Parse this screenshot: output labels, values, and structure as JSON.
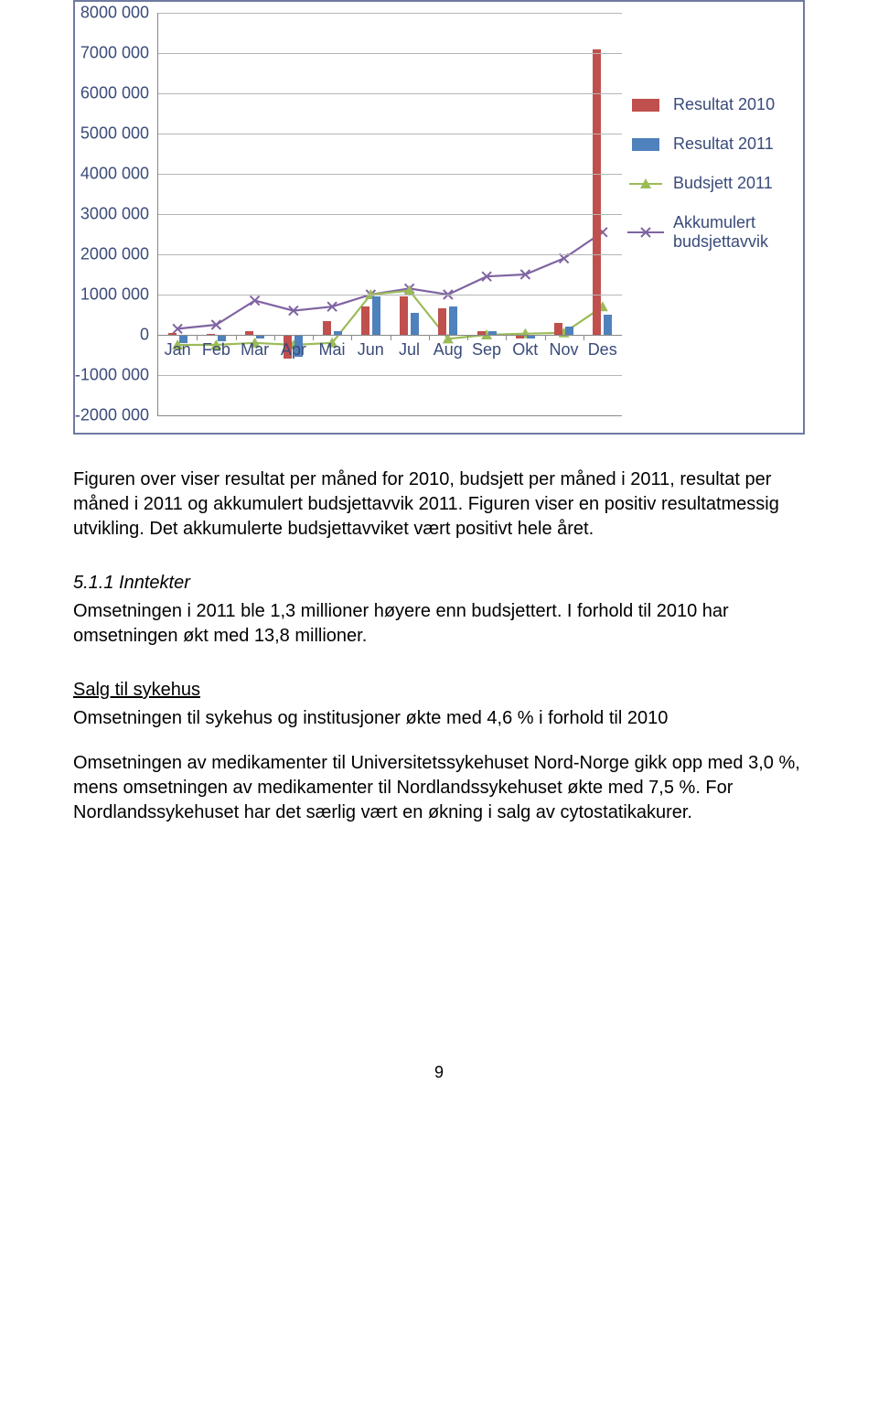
{
  "chart": {
    "type": "grouped-bar+line",
    "months": [
      "Jan",
      "Feb",
      "Mar",
      "Apr",
      "Mai",
      "Jun",
      "Jul",
      "Aug",
      "Sep",
      "Okt",
      "Nov",
      "Des"
    ],
    "ymin": -2000000,
    "ymax": 8000000,
    "ystep": 1000000,
    "ylabels": [
      "-2000 000",
      "-1000 000",
      "0",
      "1000 000",
      "2000 000",
      "3000 000",
      "4000 000",
      "5000 000",
      "6000 000",
      "7000 000",
      "8000 000"
    ],
    "series": {
      "resultat2010": {
        "label": "Resultat 2010",
        "color": "#c0504d",
        "type": "bar",
        "values": [
          50000,
          20000,
          80000,
          -600000,
          350000,
          700000,
          950000,
          650000,
          80000,
          -100000,
          300000,
          7100000
        ]
      },
      "resultat2011": {
        "label": "Resultat 2011",
        "color": "#4f81bd",
        "type": "bar",
        "values": [
          -200000,
          -150000,
          -100000,
          -550000,
          100000,
          950000,
          550000,
          700000,
          100000,
          -100000,
          200000,
          500000
        ]
      },
      "budsjett2011": {
        "label": "Budsjett 2011",
        "color": "#9bbb59",
        "type": "line-tri",
        "values": [
          -250000,
          -250000,
          -200000,
          -250000,
          -200000,
          1000000,
          1100000,
          -100000,
          0,
          30000,
          50000,
          700000
        ]
      },
      "akkumulert": {
        "label": "Akkumulert budsjettavvik",
        "color": "#8064a2",
        "type": "line-x",
        "values": [
          150000,
          250000,
          850000,
          600000,
          700000,
          1000000,
          1150000,
          1000000,
          1450000,
          1500000,
          1900000,
          2550000
        ]
      }
    },
    "background": "#ffffff",
    "grid_color": "#b5b5b5",
    "axis_color": "#888888",
    "label_color": "#3a4b7a",
    "label_fontsize": 18
  },
  "text": {
    "p1": "Figuren over viser resultat per måned for 2010, budsjett per måned i 2011, resultat per måned i 2011 og akkumulert budsjettavvik 2011. Figuren viser en positiv resultatmessig utvikling. Det akkumulerte budsjettavviket vært positivt hele året.",
    "sec511": "5.1.1 Inntekter",
    "p2a": "Omsetningen i 2011 ble 1,3 millioner høyere enn budsjettert. I forhold til 2010 har omsetningen økt med 13,8 millioner.",
    "h_salg": "Salg til sykehus",
    "p3": "Omsetningen til sykehus og institusjoner økte med 4,6 % i forhold til 2010",
    "p4": "Omsetningen av medikamenter til Universitetssykehuset Nord-Norge gikk opp med 3,0 %, mens omsetningen av medikamenter til Nordlandssykehuset økte med 7,5 %. For Nordlandssykehuset har det særlig vært en økning i salg av cytostatikakurer."
  },
  "page_number": "9"
}
